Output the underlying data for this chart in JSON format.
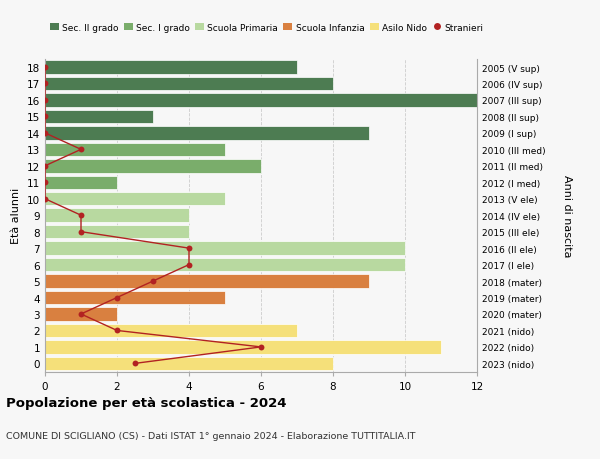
{
  "ages": [
    18,
    17,
    16,
    15,
    14,
    13,
    12,
    11,
    10,
    9,
    8,
    7,
    6,
    5,
    4,
    3,
    2,
    1,
    0
  ],
  "right_labels": [
    "2005 (V sup)",
    "2006 (IV sup)",
    "2007 (III sup)",
    "2008 (II sup)",
    "2009 (I sup)",
    "2010 (III med)",
    "2011 (II med)",
    "2012 (I med)",
    "2013 (V ele)",
    "2014 (IV ele)",
    "2015 (III ele)",
    "2016 (II ele)",
    "2017 (I ele)",
    "2018 (mater)",
    "2019 (mater)",
    "2020 (mater)",
    "2021 (nido)",
    "2022 (nido)",
    "2023 (nido)"
  ],
  "bar_values": [
    7,
    8,
    13,
    3,
    9,
    5,
    6,
    2,
    5,
    4,
    4,
    10,
    10,
    9,
    5,
    2,
    7,
    11,
    8
  ],
  "bar_colors": [
    "#4d7c52",
    "#4d7c52",
    "#4d7c52",
    "#4d7c52",
    "#4d7c52",
    "#7aad6b",
    "#7aad6b",
    "#7aad6b",
    "#b8d9a0",
    "#b8d9a0",
    "#b8d9a0",
    "#b8d9a0",
    "#b8d9a0",
    "#d98040",
    "#d98040",
    "#d98040",
    "#f5e07a",
    "#f5e07a",
    "#f5e07a"
  ],
  "stranieri_values": [
    0,
    0,
    0,
    0,
    0,
    1,
    0,
    0,
    0,
    1,
    1,
    4,
    4,
    3,
    2,
    1,
    2,
    6,
    2.5
  ],
  "title": "Popolazione per età scolastica - 2024",
  "subtitle": "COMUNE DI SCIGLIANO (CS) - Dati ISTAT 1° gennaio 2024 - Elaborazione TUTTITALIA.IT",
  "ylabel": "Età alunni",
  "right_ylabel": "Anni di nascita",
  "legend_labels": [
    "Sec. II grado",
    "Sec. I grado",
    "Scuola Primaria",
    "Scuola Infanzia",
    "Asilo Nido",
    "Stranieri"
  ],
  "legend_colors": [
    "#4d7c52",
    "#7aad6b",
    "#b8d9a0",
    "#d98040",
    "#f5e07a",
    "#b22222"
  ],
  "stranieri_color": "#b22222",
  "bg_color": "#f7f7f7",
  "grid_color": "#cccccc"
}
